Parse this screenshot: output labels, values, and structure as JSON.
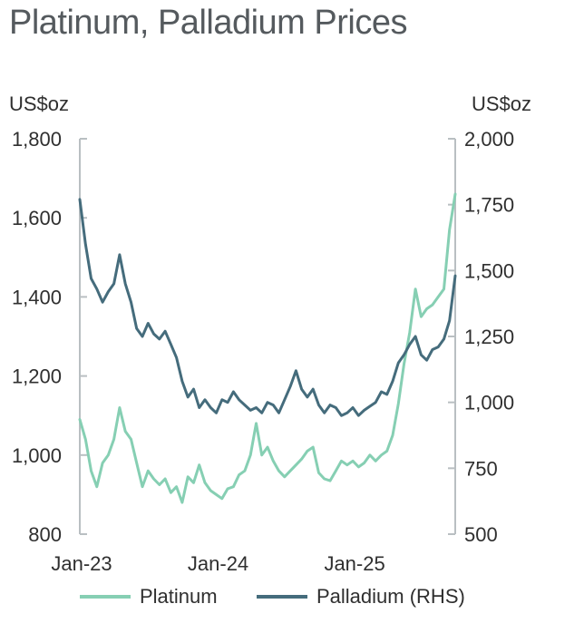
{
  "chart_data": {
    "type": "line",
    "title": "Platinum, Palladium Prices",
    "y_left": {
      "label": "US$oz",
      "range": [
        800,
        1800
      ],
      "ticks": [
        "1,800",
        "1,600",
        "1,400",
        "1,200",
        "1,000",
        "800"
      ],
      "tick_values": [
        1800,
        1600,
        1400,
        1200,
        1000,
        800
      ]
    },
    "y_right": {
      "label": "US$oz",
      "range": [
        500,
        2000
      ],
      "ticks": [
        "2,000",
        "1,750",
        "1,500",
        "1,250",
        "1,000",
        "750",
        "500"
      ],
      "tick_values": [
        2000,
        1750,
        1500,
        1250,
        1000,
        750,
        500
      ]
    },
    "x_axis": {
      "ticks": [
        "Jan-23",
        "Jan-24",
        "Jan-25"
      ],
      "tick_months": [
        0,
        12,
        24
      ],
      "range_months": [
        0,
        33
      ]
    },
    "legend_position": "bottom",
    "grid": false,
    "series": [
      {
        "name": "Platinum",
        "axis": "left",
        "color": "#86cfb3",
        "x_months": [
          0,
          0.5,
          1,
          1.5,
          2,
          2.5,
          3,
          3.5,
          4,
          4.5,
          5,
          5.5,
          6,
          6.5,
          7,
          7.5,
          8,
          8.5,
          9,
          9.5,
          10,
          10.5,
          11,
          11.5,
          12,
          12.5,
          13,
          13.5,
          14,
          14.5,
          15,
          15.5,
          16,
          16.5,
          17,
          17.5,
          18,
          18.5,
          19,
          19.5,
          20,
          20.5,
          21,
          21.5,
          22,
          22.5,
          23,
          23.5,
          24,
          24.5,
          25,
          25.5,
          26,
          26.5,
          27,
          27.5,
          28,
          28.5,
          29,
          29.5,
          30,
          30.5,
          31,
          31.5,
          32,
          32.5,
          33
        ],
        "values": [
          1090,
          1040,
          960,
          920,
          980,
          1000,
          1040,
          1120,
          1060,
          1040,
          980,
          920,
          960,
          940,
          925,
          940,
          905,
          920,
          880,
          945,
          930,
          975,
          930,
          910,
          900,
          890,
          915,
          920,
          950,
          960,
          1000,
          1080,
          1000,
          1020,
          985,
          960,
          945,
          960,
          975,
          990,
          1010,
          1020,
          955,
          940,
          935,
          960,
          985,
          975,
          985,
          970,
          980,
          1000,
          985,
          1000,
          1010,
          1050,
          1130,
          1230,
          1310,
          1420,
          1350,
          1370,
          1380,
          1400,
          1420,
          1570,
          1660
        ]
      },
      {
        "name": "Palladium (RHS)",
        "axis": "right",
        "color": "#456c7c",
        "x_months": [
          0,
          0.5,
          1,
          1.5,
          2,
          2.5,
          3,
          3.5,
          4,
          4.5,
          5,
          5.5,
          6,
          6.5,
          7,
          7.5,
          8,
          8.5,
          9,
          9.5,
          10,
          10.5,
          11,
          11.5,
          12,
          12.5,
          13,
          13.5,
          14,
          14.5,
          15,
          15.5,
          16,
          16.5,
          17,
          17.5,
          18,
          18.5,
          19,
          19.5,
          20,
          20.5,
          21,
          21.5,
          22,
          22.5,
          23,
          23.5,
          24,
          24.5,
          25,
          25.5,
          26,
          26.5,
          27,
          27.5,
          28,
          28.5,
          29,
          29.5,
          30,
          30.5,
          31,
          31.5,
          32,
          32.5,
          33
        ],
        "values": [
          1770,
          1600,
          1470,
          1430,
          1380,
          1420,
          1450,
          1560,
          1450,
          1380,
          1280,
          1250,
          1300,
          1260,
          1240,
          1270,
          1220,
          1170,
          1080,
          1020,
          1050,
          980,
          1010,
          980,
          960,
          1010,
          1000,
          1040,
          1010,
          990,
          970,
          980,
          960,
          1000,
          990,
          960,
          1010,
          1060,
          1120,
          1050,
          1020,
          1050,
          990,
          960,
          990,
          980,
          950,
          960,
          980,
          950,
          970,
          985,
          1000,
          1040,
          1030,
          1080,
          1150,
          1180,
          1220,
          1250,
          1180,
          1160,
          1200,
          1210,
          1240,
          1310,
          1480
        ]
      }
    ]
  }
}
